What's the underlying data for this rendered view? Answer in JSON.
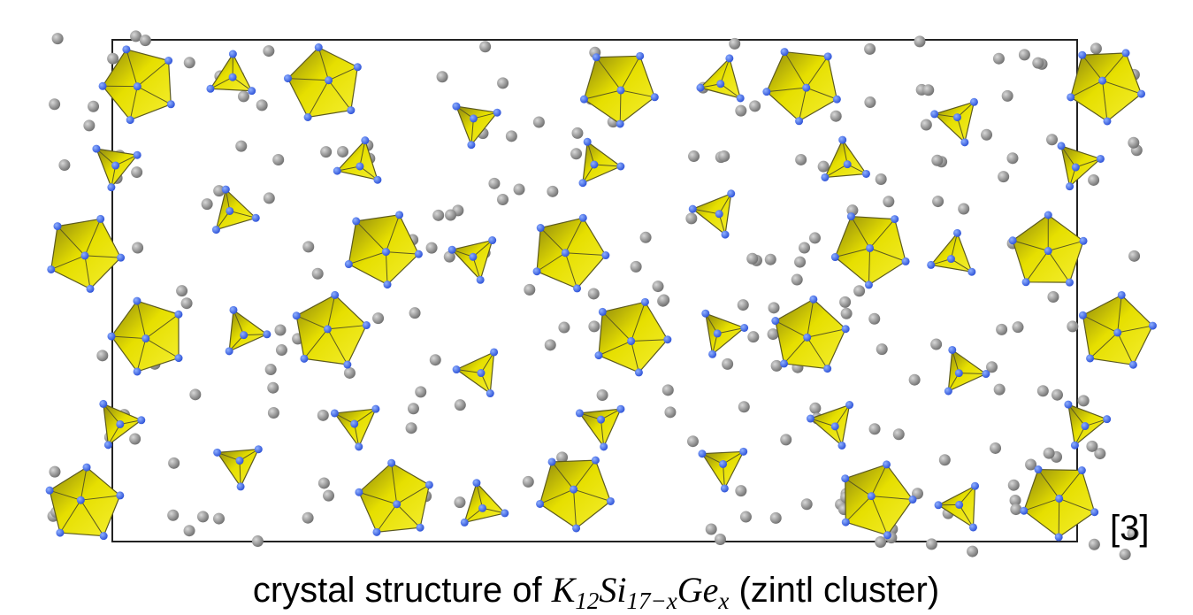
{
  "reference": "[3]",
  "caption": {
    "prefix": "crystal structure of ",
    "formula": [
      {
        "symbol": "K",
        "subscript": "12"
      },
      {
        "symbol": "Si",
        "subscript": "17−x"
      },
      {
        "symbol": "Ge",
        "subscript": "x"
      }
    ],
    "suffix": " (zintl cluster)"
  }
}
